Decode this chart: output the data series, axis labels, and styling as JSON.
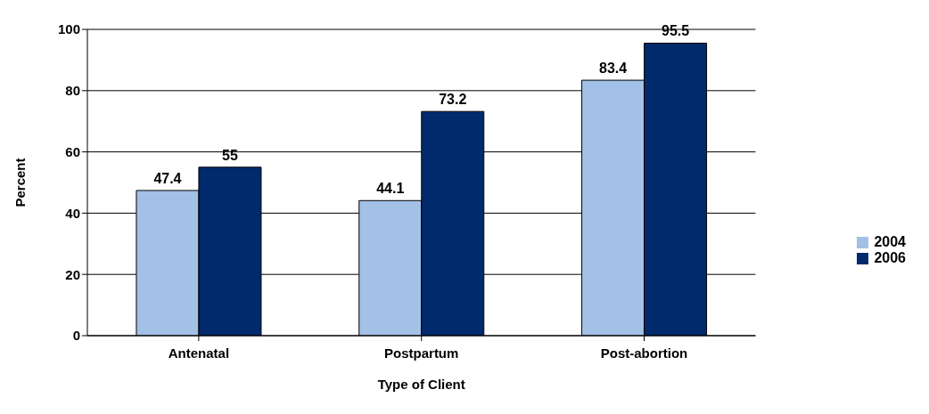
{
  "chart_data": {
    "type": "bar",
    "xlabel": "Type of Client",
    "ylabel": "Percent",
    "categories": [
      "Antenatal",
      "Postpartum",
      "Post-abortion"
    ],
    "series": [
      {
        "name": "2004",
        "color": "#a3c0e6",
        "values": [
          47.4,
          44.1,
          83.4
        ]
      },
      {
        "name": "2006",
        "color": "#002a6c",
        "values": [
          55,
          73.2,
          95.5
        ]
      }
    ],
    "ylim": [
      0,
      100
    ],
    "yticks": [
      0,
      20,
      40,
      60,
      80,
      100
    ],
    "grid": "y",
    "legend": "right",
    "data_labels": true
  }
}
